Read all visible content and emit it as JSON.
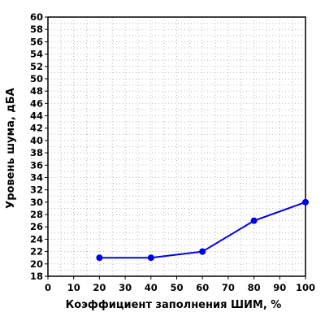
{
  "chart_data": {
    "type": "line",
    "title": "",
    "xlabel": "Коэффициент заполнения ШИМ, %",
    "ylabel": "Уровень шума, дБА",
    "xlim": [
      0,
      100
    ],
    "ylim": [
      18,
      60
    ],
    "x_ticks": [
      0,
      10,
      20,
      30,
      40,
      50,
      60,
      70,
      80,
      90,
      100
    ],
    "y_ticks": [
      18,
      20,
      22,
      24,
      26,
      28,
      30,
      32,
      34,
      36,
      38,
      40,
      42,
      44,
      46,
      48,
      50,
      52,
      54,
      56,
      58,
      60
    ],
    "grid": true,
    "series": [
      {
        "color": "#0000ee",
        "x": [
          20,
          40,
          60,
          80,
          100
        ],
        "y": [
          21,
          21,
          22,
          27,
          30
        ]
      }
    ]
  }
}
